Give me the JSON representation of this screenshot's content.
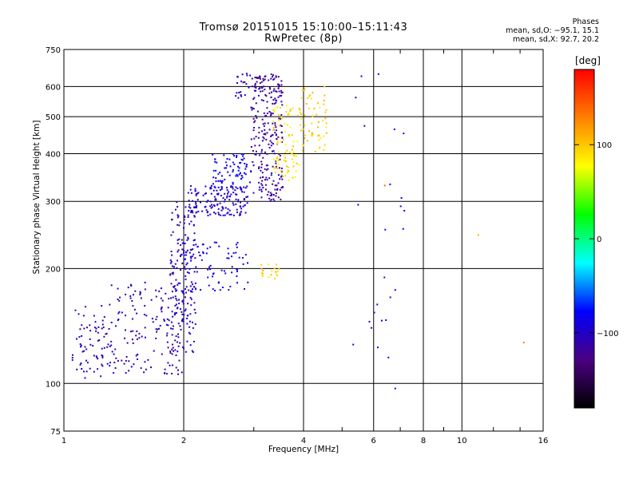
{
  "header": {
    "title_line1": "Tromsø 20151015 15:10:00–15:11:43",
    "title_line2": "RwPretec (8p)",
    "phase_heading": "Phases",
    "phase_line_o": "mean, sd,O: −95.1, 15.1",
    "phase_line_x": "mean, sd,X:  92.7, 20.2"
  },
  "colorbar": {
    "title": "[deg]",
    "range": [
      -180,
      180
    ],
    "ticks": [
      100,
      0,
      -100
    ],
    "tick_labels": [
      "100",
      "0",
      "−100"
    ],
    "colors": [
      "#000000",
      "#4b0082",
      "#0000ff",
      "#00ffff",
      "#00ff00",
      "#ffff00",
      "#ff8000",
      "#ff0000"
    ]
  },
  "chart_data": {
    "type": "scatter",
    "title": "Tromsø 20151015 15:10:00–15:11:43",
    "subtitle": "RwPretec (8p)",
    "xlabel": "Frequency [MHz]",
    "ylabel": "Stationary phase Virtual Height [km]",
    "x_scale": "log",
    "y_scale": "log",
    "xlim": [
      1,
      16
    ],
    "ylim": [
      75,
      750
    ],
    "x_ticks": [
      1,
      2,
      4,
      6,
      8,
      10,
      16
    ],
    "x_tick_labels": [
      "1",
      "2",
      "4",
      "6",
      "8",
      "10",
      "16"
    ],
    "y_ticks": [
      75,
      100,
      200,
      300,
      400,
      500,
      600,
      750
    ],
    "y_tick_labels": [
      "75",
      "100",
      "200",
      "300",
      "400",
      "500",
      "600",
      "750"
    ],
    "grid": true,
    "color_variable": "Phase [deg]",
    "clusters": [
      {
        "x_range": [
          1.05,
          1.3
        ],
        "y_range": [
          103,
          160
        ],
        "phase": -110,
        "count": 70
      },
      {
        "x_range": [
          1.3,
          2.0
        ],
        "y_range": [
          105,
          185
        ],
        "phase": -108,
        "count": 160
      },
      {
        "x_range": [
          1.85,
          2.15
        ],
        "y_range": [
          120,
          300
        ],
        "phase": -105,
        "count": 170
      },
      {
        "x_range": [
          2.0,
          2.9
        ],
        "y_range": [
          175,
          235
        ],
        "phase": -88,
        "count": 80
      },
      {
        "x_range": [
          2.05,
          2.9
        ],
        "y_range": [
          275,
          330
        ],
        "phase": -100,
        "count": 150
      },
      {
        "x_range": [
          2.35,
          2.95
        ],
        "y_range": [
          320,
          400
        ],
        "phase": -85,
        "count": 80
      },
      {
        "x_range": [
          2.7,
          2.95
        ],
        "y_range": [
          560,
          650
        ],
        "phase": -105,
        "count": 20
      },
      {
        "x_range": [
          2.95,
          3.55
        ],
        "y_range": [
          300,
          650
        ],
        "phase": -115,
        "count": 260
      },
      {
        "x_range": [
          3.35,
          3.9
        ],
        "y_range": [
          340,
          540
        ],
        "phase": 90,
        "count": 80
      },
      {
        "x_range": [
          3.9,
          4.6
        ],
        "y_range": [
          400,
          600
        ],
        "phase": 95,
        "count": 60
      },
      {
        "x_range": [
          3.1,
          3.5
        ],
        "y_range": [
          188,
          205
        ],
        "phase": 95,
        "count": 20
      },
      {
        "x_range": [
          5.2,
          7.2
        ],
        "y_range": [
          90,
          650
        ],
        "phase": -90,
        "count": 25
      }
    ],
    "points": [
      {
        "x": 1.1,
        "y": 112,
        "phase": -110
      },
      {
        "x": 1.2,
        "y": 145,
        "phase": -108
      },
      {
        "x": 1.6,
        "y": 140,
        "phase": -108
      },
      {
        "x": 2.0,
        "y": 220,
        "phase": -105
      },
      {
        "x": 2.5,
        "y": 290,
        "phase": -100
      },
      {
        "x": 3.2,
        "y": 480,
        "phase": -115
      },
      {
        "x": 3.6,
        "y": 350,
        "phase": 90
      },
      {
        "x": 4.2,
        "y": 450,
        "phase": 95
      },
      {
        "x": 11.0,
        "y": 245,
        "phase": 110
      },
      {
        "x": 14.3,
        "y": 128,
        "phase": 130
      },
      {
        "x": 6.4,
        "y": 330,
        "phase": 140
      },
      {
        "x": 6.8,
        "y": 97,
        "phase": -100
      }
    ]
  }
}
